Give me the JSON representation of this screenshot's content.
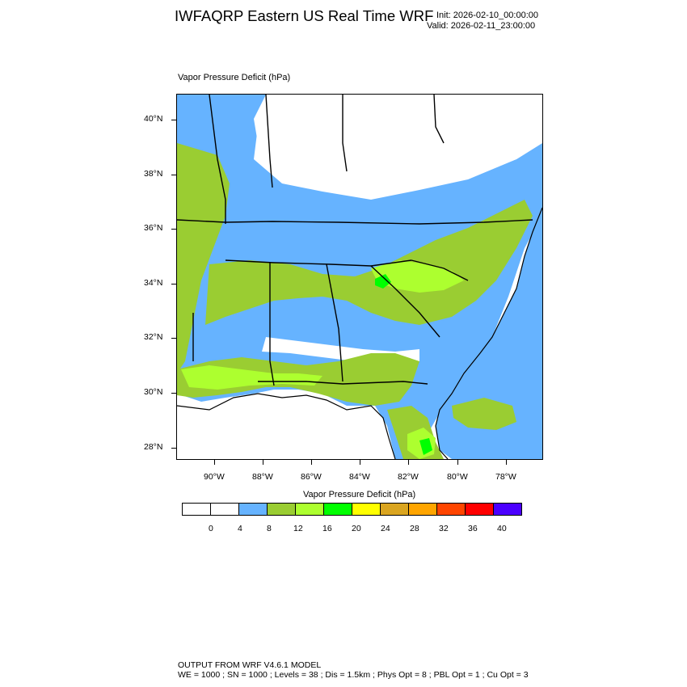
{
  "header": {
    "title": "IWFAQRP Eastern US Real Time WRF",
    "init": "Init: 2026-02-10_00:00:00",
    "valid": "Valid: 2026-02-11_23:00:00"
  },
  "field": {
    "label": "Vapor Pressure Deficit   (hPa)"
  },
  "map": {
    "lat_labels": [
      "40°N",
      "38°N",
      "36°N",
      "34°N",
      "32°N",
      "30°N",
      "28°N"
    ],
    "lon_labels": [
      "90°W",
      "88°W",
      "86°W",
      "84°W",
      "82°W",
      "80°W",
      "78°W"
    ],
    "fill_colors": {
      "low": "#ffffff",
      "blue": "#66b3ff",
      "olive": "#9acd32",
      "lime": "#adff2f",
      "green": "#00ff00",
      "ocean": "#66b3ff"
    },
    "border_color": "#000000"
  },
  "colorbar": {
    "title": "Vapor Pressure Deficit  (hPa)",
    "colors": [
      "#ffffff",
      "#ffffff",
      "#66b3ff",
      "#9acd32",
      "#adff2f",
      "#00ff00",
      "#ffff00",
      "#daa520",
      "#ffa500",
      "#ff4500",
      "#ff0000",
      "#4b00ff"
    ],
    "labels": [
      "0",
      "4",
      "8",
      "12",
      "16",
      "20",
      "24",
      "28",
      "32",
      "36",
      "40"
    ]
  },
  "footer": {
    "line1": "OUTPUT FROM WRF V4.6.1 MODEL",
    "line2": "WE = 1000 ; SN = 1000 ; Levels = 38 ; Dis = 1.5km ; Phys Opt = 8 ; PBL Opt = 1 ; Cu Opt = 3"
  }
}
